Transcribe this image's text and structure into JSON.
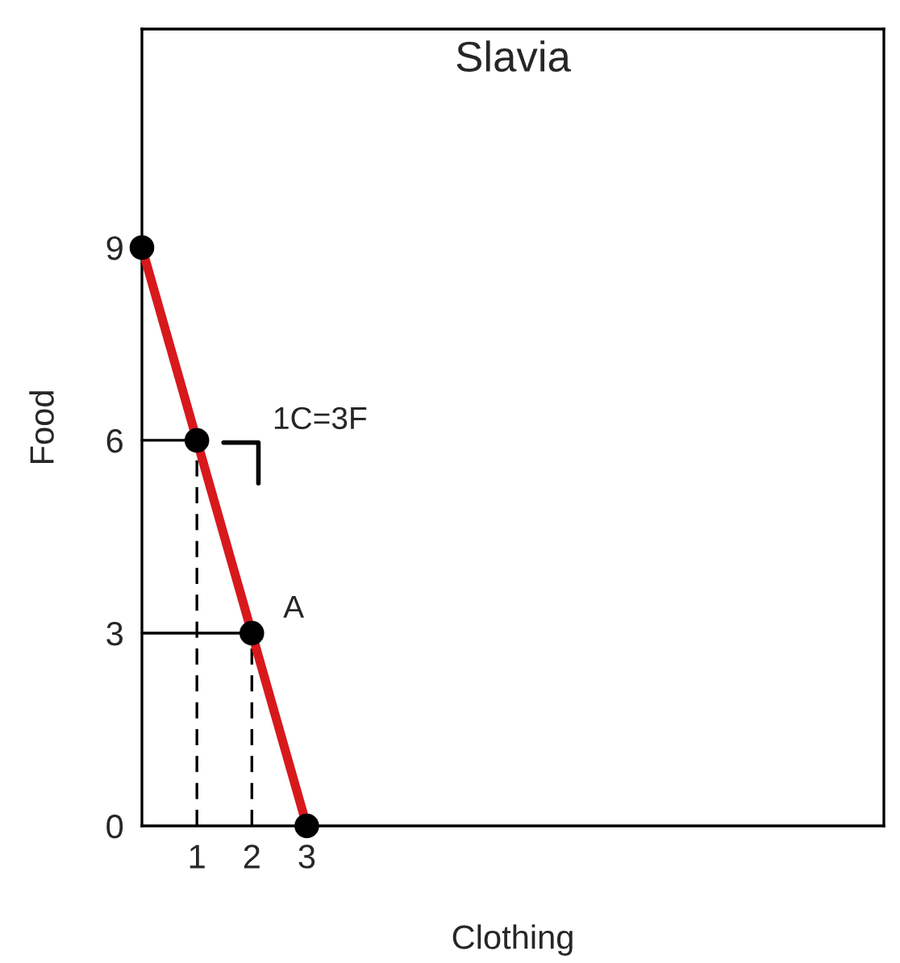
{
  "chart_data": {
    "type": "line",
    "title": "Slavia",
    "xlabel": "Clothing",
    "ylabel": "Food",
    "xlim": [
      0,
      13.5
    ],
    "ylim": [
      0,
      12.4
    ],
    "xticks": [
      1,
      2,
      3
    ],
    "yticks": [
      0,
      3,
      6,
      9
    ],
    "grid": false,
    "series": [
      {
        "color": "#d7191c",
        "x": [
          0,
          1,
          2,
          3
        ],
        "values": [
          9,
          6,
          3,
          0
        ],
        "marker": "circle",
        "line_style": "solid"
      },
      {
        "color": "#000000",
        "x": [
          1,
          1
        ],
        "values": [
          0,
          6
        ],
        "line_style": "dashed"
      },
      {
        "color": "#000000",
        "x": [
          2,
          2
        ],
        "values": [
          0,
          3
        ],
        "line_style": "dashed"
      },
      {
        "color": "#000000",
        "x": [
          0,
          1
        ],
        "values": [
          6,
          6
        ],
        "line_style": "solid"
      },
      {
        "color": "#000000",
        "x": [
          0,
          2
        ],
        "values": [
          3,
          3
        ],
        "line_style": "solid"
      }
    ],
    "annotations": [
      "1C=3F",
      {
        "text": "A",
        "x": 2,
        "y": 3
      }
    ]
  }
}
